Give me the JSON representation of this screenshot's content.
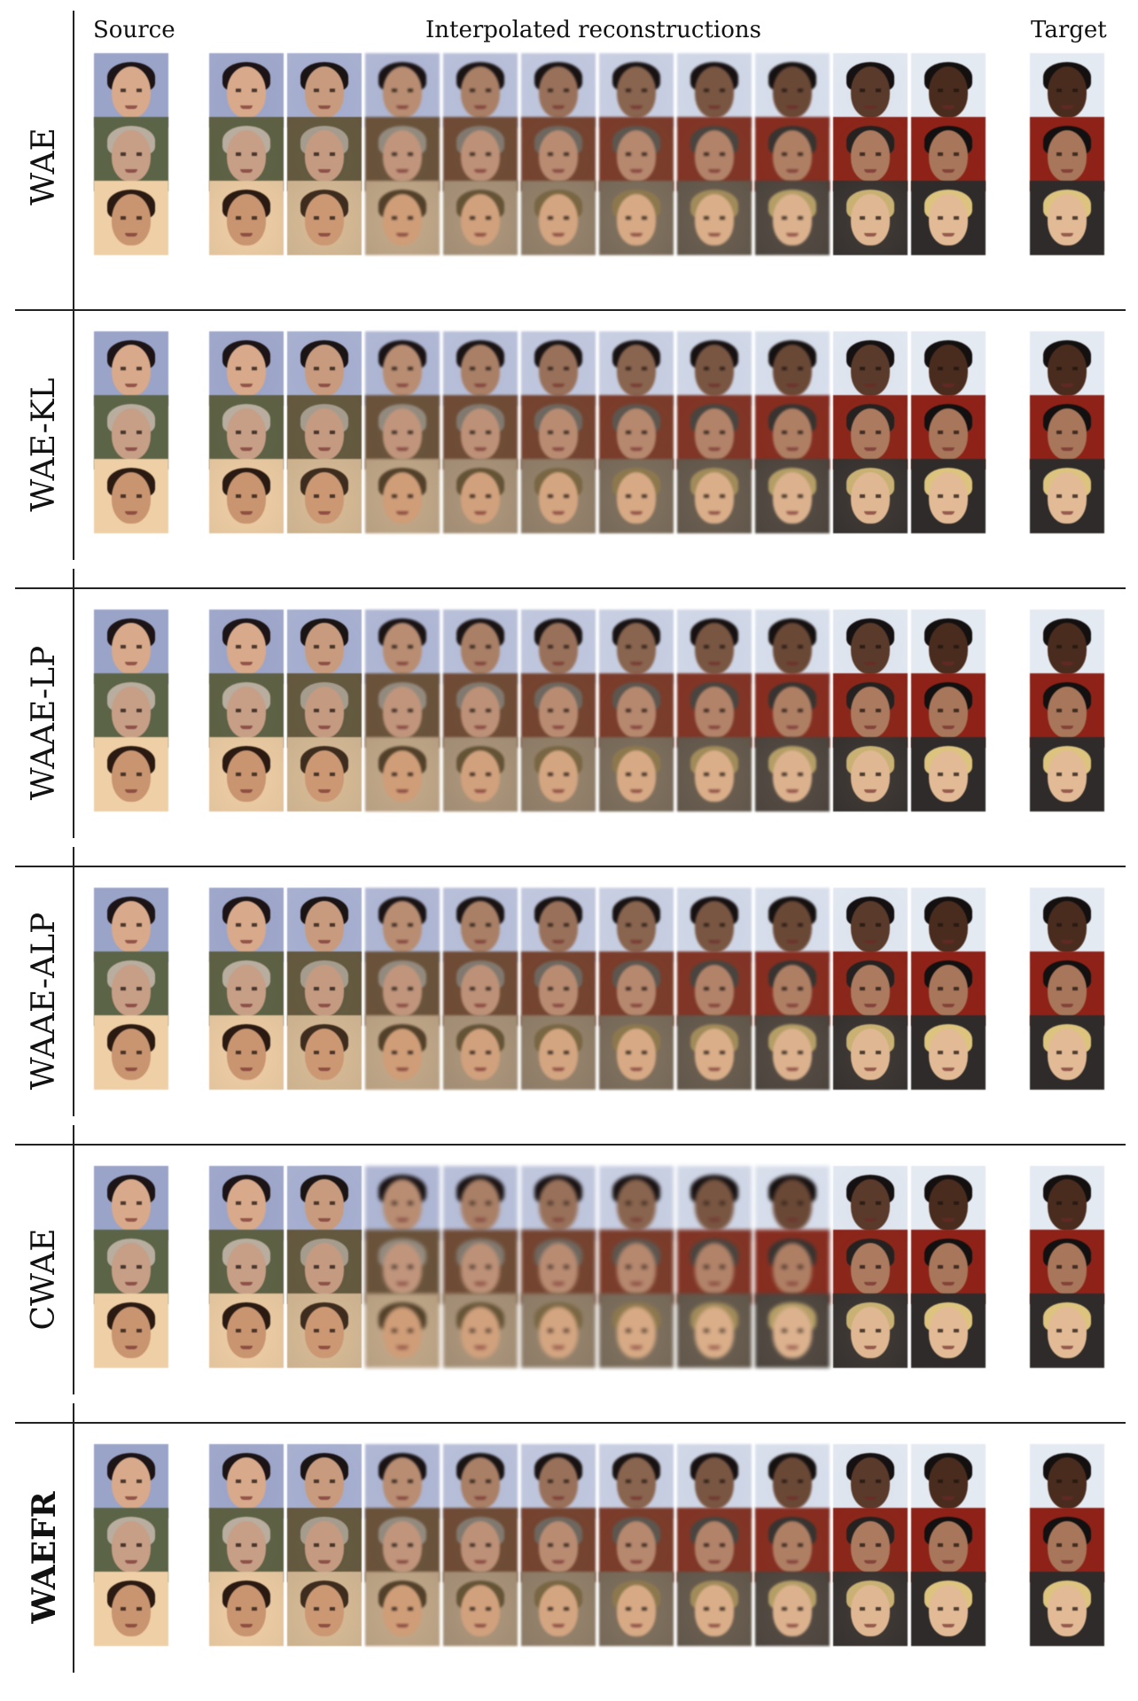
{
  "headers": {
    "source": "Source",
    "interpolated": "Interpolated reconstructions",
    "target": "Target"
  },
  "methods": [
    {
      "label": "WAE",
      "bold": false
    },
    {
      "label": "WAE-KL",
      "bold": false
    },
    {
      "label": "WAAE-LP",
      "bold": false
    },
    {
      "label": "WAAE-ALP",
      "bold": false
    },
    {
      "label": "CWAE",
      "bold": false
    },
    {
      "label": "WAEFR",
      "bold": true
    }
  ],
  "pairs": [
    {
      "name": "woman-dark-hair-to-smiling-man",
      "source": {
        "bg": "#9aa3c8",
        "skin": "#d8a98a",
        "hair": "#1c1416"
      },
      "target": {
        "bg": "#e4eaf2",
        "skin": "#4a2c1e",
        "hair": "#141010"
      }
    },
    {
      "name": "balding-man-to-young-man",
      "source": {
        "bg": "#5b6447",
        "skin": "#c79e86",
        "hair": "#b8ad9e"
      },
      "target": {
        "bg": "#8f2218",
        "skin": "#a8765a",
        "hair": "#121010"
      }
    },
    {
      "name": "surprised-man-to-blonde-woman",
      "source": {
        "bg": "#efcfa6",
        "skin": "#c99470",
        "hair": "#2a1a12"
      },
      "target": {
        "bg": "#2e2b2a",
        "skin": "#e2bb96",
        "hair": "#dcc47e"
      }
    }
  ],
  "interpolation_steps": 10
}
